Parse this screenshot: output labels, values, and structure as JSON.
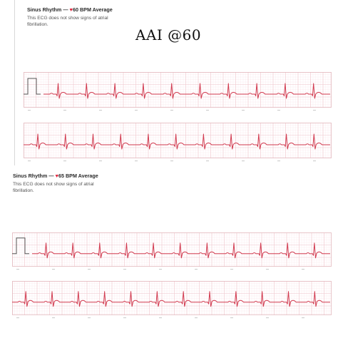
{
  "annotation": "AAI @60",
  "reports": [
    {
      "rhythm": "Sinus Rhythm —",
      "heart_glyph": "♥",
      "bpm_text": "60 BPM Average",
      "description": "This ECG does not show signs of atrial fibrillation.",
      "strips": [
        {
          "beats": 10,
          "calibration": true
        },
        {
          "beats": 11,
          "calibration": false
        }
      ]
    },
    {
      "rhythm": "Sinus Rhythm —",
      "heart_glyph": "♥",
      "bpm_text": "65 BPM Average",
      "description": "This ECG does not show signs of atrial fibrillation.",
      "strips": [
        {
          "beats": 11,
          "calibration": true
        },
        {
          "beats": 12,
          "calibration": false
        }
      ]
    }
  ],
  "colors": {
    "trace": "#d13a4f",
    "grid_major": "#f0c9cf",
    "grid_minor": "#fbe9ec",
    "strip_border": "#e3b9bf"
  }
}
